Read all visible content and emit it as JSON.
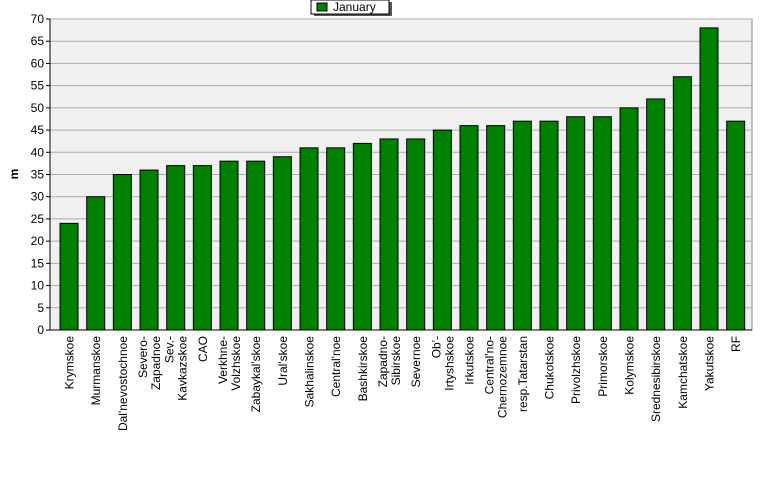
{
  "chart_data": {
    "type": "bar",
    "categories": [
      "Krymskoe",
      "Murmanskoe",
      "Dal'nevostochnoe",
      "Severo-\nZapadnoe",
      "Sev.-\nKavkazskoe",
      "CAO",
      "Verkhne-\nVolzhskoe",
      "Zabaykal'skoe",
      "Ural'skoe",
      "Sakhalinskoe",
      "Central'noe",
      "Bashkirskoe",
      "Zapadno-\nSibirskoe",
      "Severnoe",
      "Ob'-\nIrtyshskoe",
      "Irkutskoe",
      "Central'no-\nChernozemnoe",
      "resp.Tatarstan",
      "Chukotskoe",
      "Privolzhskoe",
      "Primorskoe",
      "Kolymskoe",
      "Srednesibirskoe",
      "Kamchatskoe",
      "Yakutskoe",
      "RF"
    ],
    "series": [
      {
        "name": "January",
        "color": "#008000",
        "values": [
          24,
          30,
          35,
          36,
          37,
          37,
          38,
          38,
          39,
          41,
          41,
          42,
          43,
          43,
          45,
          46,
          46,
          47,
          47,
          48,
          48,
          50,
          52,
          57,
          68,
          47
        ]
      }
    ],
    "ylabel": "m",
    "ylim": [
      0,
      70
    ],
    "yticks": [
      0,
      5,
      10,
      15,
      20,
      25,
      30,
      35,
      40,
      45,
      50,
      55,
      60,
      65,
      70
    ],
    "grid": true,
    "legend": "top"
  }
}
